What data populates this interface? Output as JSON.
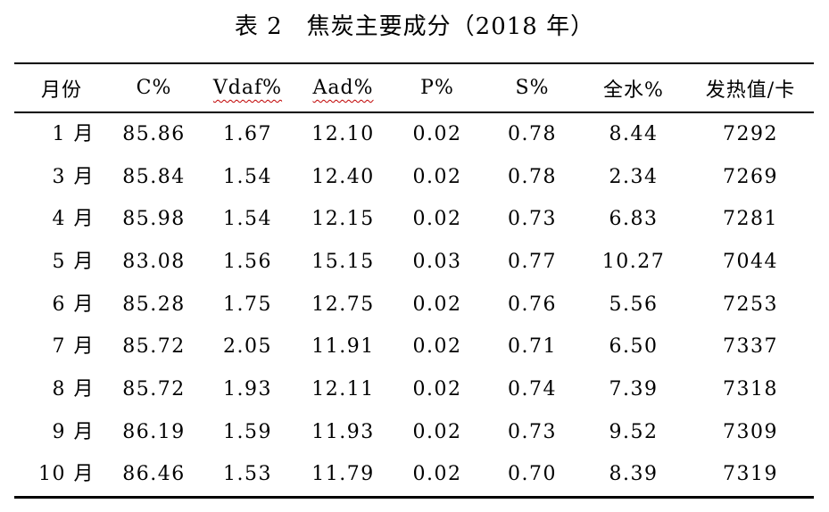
{
  "title": "表 2　焦炭主要成分（2018 年）",
  "colors": {
    "background": "#ffffff",
    "text": "#000000",
    "rule": "#000000",
    "spellcheck_underline": "#c00000"
  },
  "table": {
    "columns": [
      {
        "label": "月份",
        "wavy": false
      },
      {
        "label": "C%",
        "wavy": false
      },
      {
        "label": "Vdaf%",
        "wavy": true
      },
      {
        "label": "Aad%",
        "wavy": true
      },
      {
        "label": "P%",
        "wavy": false
      },
      {
        "label": "S%",
        "wavy": false
      },
      {
        "label": "全水%",
        "wavy": false
      },
      {
        "label": "发热值/卡",
        "wavy": false
      }
    ],
    "rows": [
      [
        "1 月",
        "85.86",
        "1.67",
        "12.10",
        "0.02",
        "0.78",
        "8.44",
        "7292"
      ],
      [
        "3 月",
        "85.84",
        "1.54",
        "12.40",
        "0.02",
        "0.78",
        "2.34",
        "7269"
      ],
      [
        "4 月",
        "85.98",
        "1.54",
        "12.15",
        "0.02",
        "0.73",
        "6.83",
        "7281"
      ],
      [
        "5 月",
        "83.08",
        "1.56",
        "15.15",
        "0.03",
        "0.77",
        "10.27",
        "7044"
      ],
      [
        "6 月",
        "85.28",
        "1.75",
        "12.75",
        "0.02",
        "0.76",
        "5.56",
        "7253"
      ],
      [
        "7 月",
        "85.72",
        "2.05",
        "11.91",
        "0.02",
        "0.71",
        "6.50",
        "7337"
      ],
      [
        "8 月",
        "85.72",
        "1.93",
        "12.11",
        "0.02",
        "0.74",
        "7.39",
        "7318"
      ],
      [
        "9 月",
        "86.19",
        "1.59",
        "11.93",
        "0.02",
        "0.73",
        "9.52",
        "7309"
      ],
      [
        "10 月",
        "86.46",
        "1.53",
        "11.79",
        "0.02",
        "0.70",
        "8.39",
        "7319"
      ]
    ]
  },
  "chart_data": {
    "type": "table",
    "title": "表 2　焦炭主要成分（2018 年）",
    "columns": [
      "月份",
      "C%",
      "Vdaf%",
      "Aad%",
      "P%",
      "S%",
      "全水%",
      "发热值/卡"
    ],
    "rows": [
      [
        "1 月",
        85.86,
        1.67,
        12.1,
        0.02,
        0.78,
        8.44,
        7292
      ],
      [
        "3 月",
        85.84,
        1.54,
        12.4,
        0.02,
        0.78,
        2.34,
        7269
      ],
      [
        "4 月",
        85.98,
        1.54,
        12.15,
        0.02,
        0.73,
        6.83,
        7281
      ],
      [
        "5 月",
        83.08,
        1.56,
        15.15,
        0.03,
        0.77,
        10.27,
        7044
      ],
      [
        "6 月",
        85.28,
        1.75,
        12.75,
        0.02,
        0.76,
        5.56,
        7253
      ],
      [
        "7 月",
        85.72,
        2.05,
        11.91,
        0.02,
        0.71,
        6.5,
        7337
      ],
      [
        "8 月",
        85.72,
        1.93,
        12.11,
        0.02,
        0.74,
        7.39,
        7318
      ],
      [
        "9 月",
        86.19,
        1.59,
        11.93,
        0.02,
        0.73,
        9.52,
        7309
      ],
      [
        "10 月",
        86.46,
        1.53,
        11.79,
        0.02,
        0.7,
        8.39,
        7319
      ]
    ]
  }
}
